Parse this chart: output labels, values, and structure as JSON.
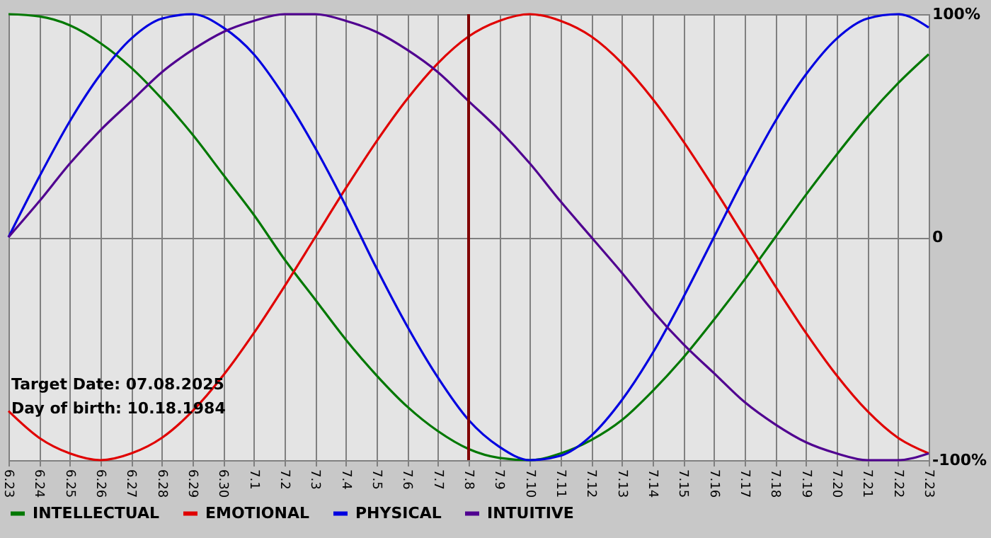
{
  "chart_data": {
    "type": "line",
    "categories": [
      "6.23",
      "6.24",
      "6.25",
      "6.26",
      "6.27",
      "6.28",
      "6.29",
      "6.30",
      "7.1",
      "7.2",
      "7.3",
      "7.4",
      "7.5",
      "7.6",
      "7.7",
      "7.8",
      "7.9",
      "7.10",
      "7.11",
      "7.12",
      "7.13",
      "7.14",
      "7.15",
      "7.16",
      "7.17",
      "7.18",
      "7.19",
      "7.20",
      "7.21",
      "7.22",
      "7.23"
    ],
    "series": [
      {
        "name": "INTELLECTUAL",
        "color": "#007800",
        "values": [
          100,
          99,
          95,
          87,
          76,
          62,
          46,
          28,
          10,
          -10,
          -28,
          -46,
          -62,
          -76,
          -87,
          -95,
          -99,
          -100,
          -97,
          -91,
          -82,
          -69,
          -54,
          -37,
          -19,
          0,
          19,
          37,
          54,
          69,
          82
        ]
      },
      {
        "name": "EMOTIONAL",
        "color": "#e00000",
        "values": [
          -78,
          -90,
          -97,
          -100,
          -97,
          -90,
          -78,
          -62,
          -43,
          -22,
          0,
          22,
          43,
          62,
          78,
          90,
          97,
          100,
          97,
          90,
          78,
          62,
          43,
          22,
          0,
          -22,
          -43,
          -62,
          -78,
          -90,
          -97
        ]
      },
      {
        "name": "PHYSICAL",
        "color": "#0000e0",
        "values": [
          0,
          27,
          52,
          73,
          89,
          98,
          100,
          94,
          82,
          63,
          40,
          14,
          -14,
          -40,
          -63,
          -82,
          -94,
          -100,
          -98,
          -89,
          -73,
          -52,
          -27,
          0,
          27,
          52,
          73,
          89,
          98,
          100,
          94
        ]
      },
      {
        "name": "INTUITIVE",
        "color": "#500090",
        "values": [
          0,
          16,
          33,
          48,
          61,
          74,
          84,
          92,
          97,
          100,
          100,
          97,
          92,
          84,
          74,
          61,
          48,
          33,
          16,
          0,
          -16,
          -33,
          -48,
          -61,
          -74,
          -84,
          -92,
          -97,
          -100,
          -100,
          -97
        ]
      }
    ],
    "ylim": [
      -100,
      100
    ],
    "yticks": [
      {
        "value": 100,
        "label": "100%"
      },
      0,
      {
        "value": -100,
        "label": "-100%"
      }
    ],
    "ref_lines": [
      {
        "axis": "x",
        "value": "7.8",
        "label": null,
        "color": "#800000"
      }
    ],
    "annotations": [
      "Target Date: 07.08.2025",
      "Day of birth: 10.18.1984"
    ],
    "grid": true,
    "legend": "bottom left"
  }
}
